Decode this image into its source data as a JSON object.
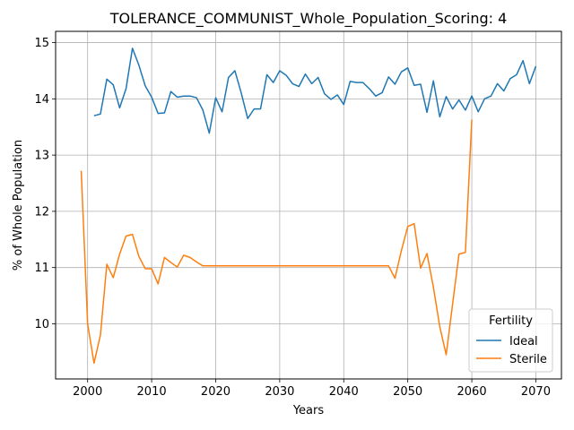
{
  "chart_data": {
    "type": "line",
    "title": "TOLERANCE_COMMUNIST_Whole_Population_Scoring: 4",
    "xlabel": "Years",
    "ylabel": "% of Whole Population",
    "xlim": [
      1995,
      2074
    ],
    "ylim": [
      9.02,
      15.2
    ],
    "xticks": [
      2000,
      2010,
      2020,
      2030,
      2040,
      2050,
      2060,
      2070
    ],
    "yticks": [
      10,
      11,
      12,
      13,
      14,
      15
    ],
    "grid": true,
    "legend": {
      "title": "Fertility",
      "placement": "lower-right"
    },
    "series": [
      {
        "name": "Ideal",
        "color": "#1f77b4",
        "x": [
          2001,
          2002,
          2003,
          2004,
          2005,
          2006,
          2007,
          2008,
          2009,
          2010,
          2011,
          2012,
          2013,
          2014,
          2015,
          2016,
          2017,
          2018,
          2019,
          2020,
          2021,
          2022,
          2023,
          2024,
          2025,
          2026,
          2027,
          2028,
          2029,
          2030,
          2031,
          2032,
          2033,
          2034,
          2035,
          2036,
          2037,
          2038,
          2039,
          2040,
          2041,
          2042,
          2043,
          2044,
          2045,
          2046,
          2047,
          2048,
          2049,
          2050,
          2051,
          2052,
          2053,
          2054,
          2055,
          2056,
          2057,
          2058,
          2059,
          2060,
          2061,
          2062,
          2063,
          2064,
          2065,
          2066,
          2067,
          2068,
          2069,
          2070
        ],
        "y": [
          13.7,
          13.73,
          14.35,
          14.25,
          13.84,
          14.18,
          14.9,
          14.6,
          14.23,
          14.03,
          13.74,
          13.75,
          14.13,
          14.03,
          14.05,
          14.05,
          14.02,
          13.8,
          13.39,
          14.02,
          13.77,
          14.38,
          14.5,
          14.1,
          13.65,
          13.82,
          13.82,
          14.43,
          14.29,
          14.5,
          14.42,
          14.27,
          14.22,
          14.44,
          14.27,
          14.38,
          14.09,
          13.99,
          14.07,
          13.9,
          14.31,
          14.29,
          14.29,
          14.18,
          14.05,
          14.11,
          14.39,
          14.26,
          14.48,
          14.55,
          14.24,
          14.26,
          13.76,
          14.32,
          13.68,
          14.04,
          13.82,
          13.98,
          13.8,
          14.05,
          13.77,
          14.0,
          14.05,
          14.27,
          14.14,
          14.36,
          14.43,
          14.68,
          14.27,
          14.58
        ]
      },
      {
        "name": "Sterile",
        "color": "#ff7f0e",
        "x": [
          1999,
          2000,
          2001,
          2002,
          2003,
          2004,
          2005,
          2006,
          2007,
          2008,
          2009,
          2010,
          2011,
          2012,
          2013,
          2014,
          2015,
          2016,
          2017,
          2018,
          2019,
          2020,
          2021,
          2022,
          2023,
          2024,
          2025,
          2026,
          2027,
          2028,
          2029,
          2030,
          2031,
          2032,
          2033,
          2034,
          2035,
          2036,
          2037,
          2038,
          2039,
          2040,
          2041,
          2042,
          2043,
          2044,
          2045,
          2046,
          2047,
          2048,
          2049,
          2050,
          2051,
          2052,
          2053,
          2054,
          2055,
          2056,
          2057,
          2058,
          2059,
          2060
        ],
        "y": [
          12.72,
          10.0,
          9.3,
          9.8,
          11.06,
          10.82,
          11.24,
          11.56,
          11.59,
          11.2,
          10.98,
          10.98,
          10.71,
          11.18,
          11.09,
          11.01,
          11.22,
          11.18,
          11.1,
          11.03,
          11.03,
          11.03,
          11.03,
          11.03,
          11.03,
          11.03,
          11.03,
          11.03,
          11.03,
          11.03,
          11.03,
          11.03,
          11.03,
          11.03,
          11.03,
          11.03,
          11.03,
          11.03,
          11.03,
          11.03,
          11.03,
          11.03,
          11.03,
          11.03,
          11.03,
          11.03,
          11.03,
          11.03,
          11.03,
          10.81,
          11.3,
          11.73,
          11.78,
          10.99,
          11.25,
          10.65,
          9.95,
          9.45,
          10.35,
          11.24,
          11.27,
          13.63
        ]
      }
    ]
  }
}
